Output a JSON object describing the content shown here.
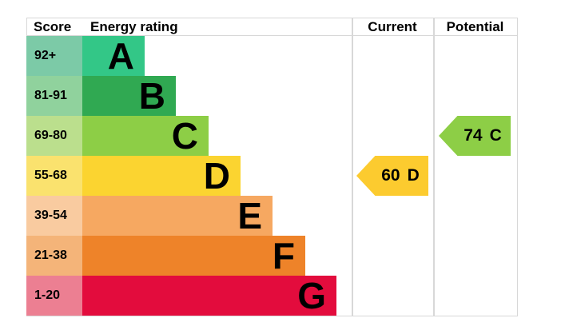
{
  "chart": {
    "header": {
      "score": "Score",
      "energy_rating": "Energy rating",
      "current": "Current",
      "potential": "Potential"
    },
    "bands": [
      {
        "letter": "A",
        "score": "92+",
        "color": "#33c787",
        "tint": "#7ccaa7"
      },
      {
        "letter": "B",
        "score": "81-91",
        "color": "#30a952",
        "tint": "#90d29d"
      },
      {
        "letter": "C",
        "score": "69-80",
        "color": "#8dce46",
        "tint": "#bbdf8d"
      },
      {
        "letter": "D",
        "score": "55-68",
        "color": "#fbd430",
        "tint": "#fae26e"
      },
      {
        "letter": "E",
        "score": "39-54",
        "color": "#f6a861",
        "tint": "#f9cba0"
      },
      {
        "letter": "F",
        "score": "21-38",
        "color": "#ee8329",
        "tint": "#f4b479"
      },
      {
        "letter": "G",
        "score": "1-20",
        "color": "#e30c3d",
        "tint": "#ec7f92"
      }
    ],
    "current": {
      "value": "60",
      "band": "D",
      "color": "#fccb2f"
    },
    "potential": {
      "value": "74",
      "band": "C",
      "color": "#8dce46"
    },
    "grid_color": "#d8d8d8"
  },
  "chart_data": {
    "type": "bar",
    "title": "Energy rating",
    "columns": [
      "Score",
      "Energy rating",
      "Current",
      "Potential"
    ],
    "categories": [
      "A",
      "B",
      "C",
      "D",
      "E",
      "F",
      "G"
    ],
    "score_ranges": [
      "92+",
      "81-91",
      "69-80",
      "55-68",
      "39-54",
      "21-38",
      "1-20"
    ],
    "band_colors": [
      "#33c787",
      "#30a952",
      "#8dce46",
      "#fbd430",
      "#f6a861",
      "#ee8329",
      "#e30c3d"
    ],
    "markers": {
      "current": {
        "score": 60,
        "band": "D"
      },
      "potential": {
        "score": 74,
        "band": "C"
      }
    },
    "layout": {
      "bars_descend_left_to_right": false,
      "bar_lengths_increase_A_to_G": true,
      "legend": "none",
      "grid": "column dividers only"
    }
  }
}
